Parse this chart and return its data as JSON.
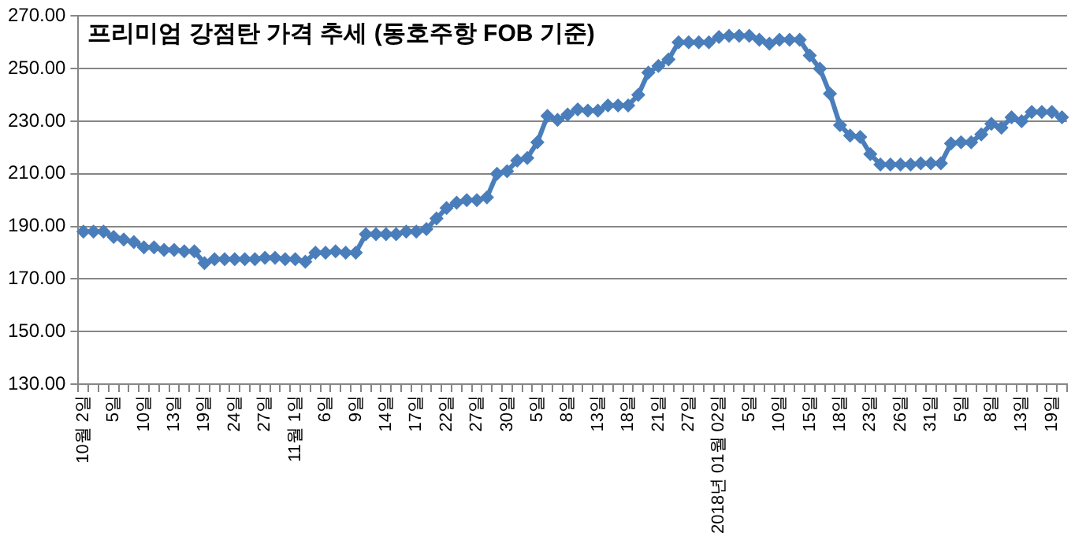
{
  "chart_data": {
    "type": "line",
    "title": "프리미엄 강점탄 가격 추세 (동호주항 FOB 기준)",
    "categories": [
      "10월 2일",
      null,
      null,
      "5일",
      null,
      null,
      "10일",
      null,
      null,
      "13일",
      null,
      null,
      "19일",
      null,
      null,
      "24일",
      null,
      null,
      "27일",
      null,
      null,
      "11월 1일",
      null,
      null,
      "6일",
      null,
      null,
      "9일",
      null,
      null,
      "14일",
      null,
      null,
      "17일",
      null,
      null,
      "22일",
      null,
      null,
      "27일",
      null,
      null,
      "30일",
      null,
      null,
      "5일",
      null,
      null,
      "8일",
      null,
      null,
      "13일",
      null,
      null,
      "18일",
      null,
      null,
      "21일",
      null,
      null,
      "27일",
      null,
      null,
      "2018년 01월 02일",
      null,
      null,
      "5일",
      null,
      null,
      "10일",
      null,
      null,
      "15일",
      null,
      null,
      "18일",
      null,
      null,
      "23일",
      null,
      null,
      "26일",
      null,
      null,
      "31일",
      null,
      null,
      "5일",
      null,
      null,
      "8일",
      null,
      null,
      "13일",
      null,
      null,
      "19일",
      null
    ],
    "series": [
      {
        "color": "#4a7ebb",
        "values": [
          188,
          188,
          188,
          186,
          185,
          184,
          182,
          182,
          181,
          181,
          180.5,
          180.5,
          176,
          177.5,
          177.5,
          177.5,
          177.5,
          177.5,
          178,
          178,
          177.5,
          177.5,
          176.5,
          180,
          180,
          180.5,
          180,
          180,
          187,
          187,
          187,
          187,
          188,
          188,
          189,
          193,
          197,
          199,
          200,
          200,
          201,
          210,
          211,
          215,
          216,
          222,
          232,
          230.5,
          232.5,
          234.5,
          234,
          234,
          236,
          236,
          236,
          240,
          248.5,
          251,
          253.5,
          260,
          260,
          260,
          260,
          262,
          262.5,
          262.5,
          262.5,
          261,
          259.5,
          261,
          261,
          261,
          255,
          250,
          240.5,
          228.5,
          224.5,
          224,
          217.5,
          213.5,
          213.5,
          213.5,
          213.5,
          214,
          214,
          214,
          221.5,
          222,
          222,
          225,
          229,
          227.5,
          231.5,
          230,
          233.5,
          233.5,
          233.5,
          231.5
        ]
      }
    ],
    "ylim": [
      130,
      270
    ],
    "yticks": [
      {
        "value": 130,
        "label": "130.00"
      },
      {
        "value": 150,
        "label": "150.00"
      },
      {
        "value": 170,
        "label": "170.00"
      },
      {
        "value": 190,
        "label": "190.00"
      },
      {
        "value": 210,
        "label": "210.00"
      },
      {
        "value": 230,
        "label": "230.00"
      },
      {
        "value": 250,
        "label": "250.00"
      },
      {
        "value": 270,
        "label": "270.00"
      }
    ],
    "grid": "y",
    "legend": false,
    "marker": "diamond",
    "line_style": "solid"
  }
}
